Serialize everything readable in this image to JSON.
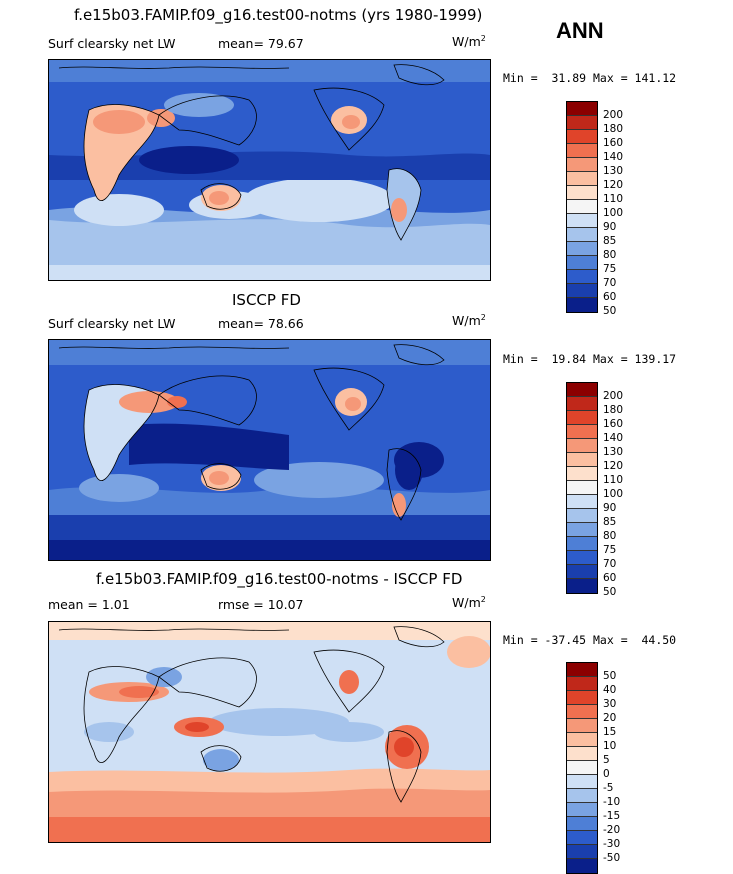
{
  "season": "ANN",
  "panels": [
    {
      "title": "f.e15b03.FAMIP.f09_g16.test00-notms (yrs 1980-1999)",
      "variable": "Surf clearsky net LW",
      "stat_text": "mean=  79.67",
      "units": "W/m",
      "units_sup": "2",
      "minmax": "Min =  31.89 Max = 141.12",
      "levels": [
        "200",
        "180",
        "160",
        "140",
        "130",
        "120",
        "110",
        "100",
        "90",
        "85",
        "80",
        "75",
        "70",
        "60",
        "50"
      ],
      "colors": [
        "#8b0000",
        "#c0281a",
        "#e0442a",
        "#f07050",
        "#f59878",
        "#fbbfa1",
        "#fde0cc",
        "#f5f5f5",
        "#cfe0f5",
        "#a6c4ec",
        "#7aa3e2",
        "#4e7fd6",
        "#2d5ccb",
        "#1a3fae",
        "#0a1f8a"
      ]
    },
    {
      "title": "ISCCP FD",
      "variable": "Surf clearsky net LW",
      "stat_text": "mean=  78.66",
      "units": "W/m",
      "units_sup": "2",
      "minmax": "Min =  19.84 Max = 139.17",
      "levels": [
        "200",
        "180",
        "160",
        "140",
        "130",
        "120",
        "110",
        "100",
        "90",
        "85",
        "80",
        "75",
        "70",
        "60",
        "50"
      ],
      "colors": [
        "#8b0000",
        "#c0281a",
        "#e0442a",
        "#f07050",
        "#f59878",
        "#fbbfa1",
        "#fde0cc",
        "#f5f5f5",
        "#cfe0f5",
        "#a6c4ec",
        "#7aa3e2",
        "#4e7fd6",
        "#2d5ccb",
        "#1a3fae",
        "#0a1f8a"
      ]
    },
    {
      "title": "f.e15b03.FAMIP.f09_g16.test00-notms - ISCCP FD",
      "mean_text": "mean =    1.01",
      "rmse_text": "rmse =   10.07",
      "units": "W/m",
      "units_sup": "2",
      "minmax": "Min = -37.45 Max =  44.50",
      "levels": [
        "50",
        "40",
        "30",
        "20",
        "15",
        "10",
        "5",
        "0",
        "-5",
        "-10",
        "-15",
        "-20",
        "-30",
        "-50"
      ],
      "colors": [
        "#8b0000",
        "#c0281a",
        "#e0442a",
        "#f07050",
        "#f59878",
        "#fbbfa1",
        "#fde0cc",
        "#f5f5f5",
        "#cfe0f5",
        "#a6c4ec",
        "#7aa3e2",
        "#4e7fd6",
        "#2d5ccb",
        "#1a3fae",
        "#0a1f8a"
      ]
    }
  ]
}
